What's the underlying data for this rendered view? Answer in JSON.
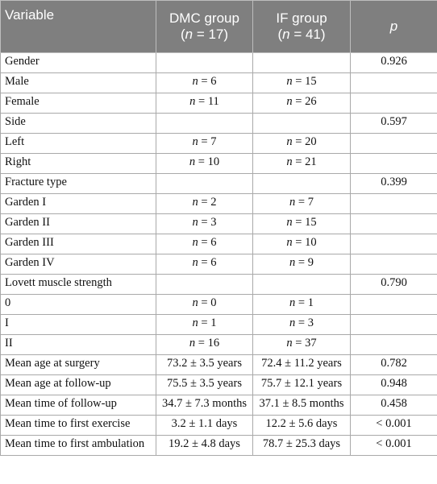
{
  "table": {
    "header": [
      [
        "Variable"
      ],
      [
        "DMC group",
        "(n = 17)"
      ],
      [
        "IF group",
        "(n = 41)"
      ],
      [
        "p"
      ]
    ],
    "rows": [
      [
        "Gender",
        null,
        null,
        "0.926"
      ],
      [
        "Male",
        "n = 6",
        "n = 15",
        null
      ],
      [
        "Female",
        "n = 11",
        "n = 26",
        null
      ],
      [
        "Side",
        null,
        null,
        "0.597"
      ],
      [
        "Left",
        "n = 7",
        "n = 20",
        null
      ],
      [
        "Right",
        "n = 10",
        "n = 21",
        null
      ],
      [
        "Fracture type",
        null,
        null,
        "0.399"
      ],
      [
        "Garden I",
        "n = 2",
        "n = 7",
        null
      ],
      [
        "Garden II",
        "n = 3",
        "n = 15",
        null
      ],
      [
        "Garden III",
        "n = 6",
        "n = 10",
        null
      ],
      [
        "Garden IV",
        "n = 6",
        "n = 9",
        null
      ],
      [
        "Lovett muscle strength",
        null,
        null,
        "0.790"
      ],
      [
        "0",
        "n = 0",
        "n = 1",
        null
      ],
      [
        "I",
        "n = 1",
        "n = 3",
        null
      ],
      [
        "II",
        "n = 16",
        "n = 37",
        null
      ],
      [
        "Mean age at surgery",
        "73.2 ± 3.5 years",
        "72.4 ± 11.2 years",
        "0.782"
      ],
      [
        "Mean age at follow-up",
        "75.5 ± 3.5 years",
        "75.7 ± 12.1 years",
        "0.948"
      ],
      [
        "Mean time of follow-up",
        "34.7 ± 7.3 months",
        "37.1 ± 8.5 months",
        "0.458"
      ],
      [
        "Mean time to first exercise",
        "3.2 ± 1.1 days",
        "12.2 ± 5.6 days",
        "< 0.001"
      ],
      [
        "Mean time to first ambulation",
        "19.2 ± 4.8 days",
        "78.7 ± 25.3 days",
        "< 0.001"
      ]
    ]
  }
}
